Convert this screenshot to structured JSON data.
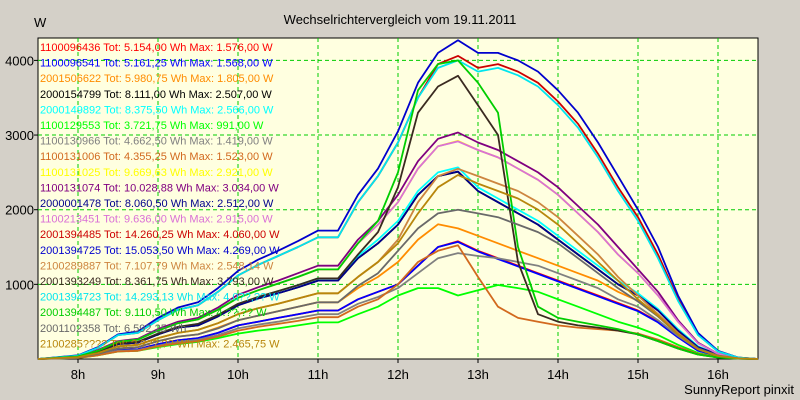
{
  "chart_data": {
    "type": "line",
    "title": "Wechselrichtervergleich vom 19.11.2011",
    "ylabel": "W",
    "xlabel": "",
    "footer": "SunnyReport pinxit",
    "x_ticks": [
      "8h",
      "9h",
      "10h",
      "11h",
      "12h",
      "13h",
      "14h",
      "15h",
      "16h"
    ],
    "y_ticks": [
      1000,
      2000,
      3000,
      4000
    ],
    "xlim": [
      7.5,
      16.5
    ],
    "ylim": [
      0,
      4300
    ],
    "grid": true,
    "legend_position": "top-left",
    "colors": {
      "plot_background": "#ffffe0",
      "window_background": "#d4d0c8",
      "grid": "#00cc00"
    },
    "x": [
      7.5,
      8.0,
      8.25,
      8.5,
      8.75,
      9.0,
      9.25,
      9.5,
      9.75,
      10.0,
      10.25,
      10.5,
      10.75,
      11.0,
      11.25,
      11.5,
      11.75,
      12.0,
      12.25,
      12.5,
      12.75,
      13.0,
      13.25,
      13.5,
      13.75,
      14.0,
      14.25,
      14.5,
      14.75,
      15.0,
      15.25,
      15.5,
      15.75,
      16.0,
      16.25,
      16.5
    ],
    "series": [
      {
        "name": "1100096436 Tot: 5.154,00 Wh Max: 1.576,00 W",
        "color": "#ff0000",
        "values": [
          0,
          20,
          60,
          120,
          130,
          200,
          250,
          280,
          350,
          450,
          500,
          550,
          600,
          650,
          650,
          800,
          900,
          1000,
          1250,
          1500,
          1576,
          1450,
          1350,
          1250,
          1150,
          1050,
          950,
          850,
          750,
          650,
          500,
          300,
          120,
          40,
          10,
          0
        ]
      },
      {
        "name": "1100096541 Tot: 5.161,25 Wh Max: 1.568,00 W",
        "color": "#0000ff",
        "values": [
          0,
          20,
          60,
          120,
          130,
          200,
          250,
          280,
          350,
          450,
          500,
          550,
          600,
          650,
          650,
          800,
          900,
          1000,
          1250,
          1500,
          1568,
          1440,
          1340,
          1240,
          1140,
          1040,
          940,
          840,
          740,
          640,
          490,
          290,
          110,
          40,
          10,
          0
        ]
      },
      {
        "name": "2001506622 Tot: 5.980,75 Wh Max: 1.805,00 W",
        "color": "#ff8c00",
        "values": [
          0,
          25,
          70,
          140,
          160,
          240,
          300,
          330,
          420,
          520,
          580,
          640,
          700,
          760,
          760,
          950,
          1100,
          1300,
          1600,
          1805,
          1750,
          1650,
          1550,
          1450,
          1350,
          1250,
          1150,
          1050,
          900,
          780,
          600,
          350,
          140,
          50,
          10,
          0
        ]
      },
      {
        "name": "2000154799 Tot: 8.111,00 Wh Max: 2.507,00 W",
        "color": "#000000",
        "values": [
          0,
          30,
          100,
          200,
          220,
          330,
          420,
          450,
          570,
          720,
          810,
          880,
          960,
          1050,
          1050,
          1350,
          1550,
          1800,
          2200,
          2450,
          2507,
          2250,
          2100,
          1950,
          1800,
          1600,
          1400,
          1200,
          1000,
          850,
          650,
          380,
          160,
          60,
          15,
          0
        ]
      },
      {
        "name": "2000149892 Tot: 8.375,50 Wh Max: 2.566,00 W",
        "color": "#00ffff",
        "values": [
          0,
          30,
          100,
          200,
          230,
          340,
          430,
          470,
          590,
          740,
          830,
          910,
          990,
          1080,
          1080,
          1380,
          1600,
          1850,
          2250,
          2500,
          2566,
          2300,
          2150,
          2000,
          1850,
          1650,
          1450,
          1250,
          1050,
          880,
          670,
          400,
          170,
          60,
          15,
          0
        ]
      },
      {
        "name": "1100129553 Tot: 3.721,75 Wh Max: 991,00 W",
        "color": "#00ff00",
        "values": [
          0,
          15,
          50,
          100,
          110,
          160,
          200,
          230,
          280,
          340,
          380,
          410,
          450,
          490,
          490,
          600,
          700,
          850,
          950,
          950,
          850,
          920,
          991,
          950,
          900,
          800,
          700,
          600,
          500,
          420,
          320,
          190,
          80,
          25,
          5,
          0
        ]
      },
      {
        "name": "1100130966 Tot: 4.662,50 Wh Max: 1.419,00 W",
        "color": "#808080",
        "values": [
          0,
          18,
          55,
          110,
          120,
          180,
          230,
          260,
          320,
          410,
          460,
          500,
          550,
          600,
          600,
          740,
          830,
          950,
          1150,
          1350,
          1419,
          1380,
          1350,
          1300,
          1250,
          1150,
          1050,
          950,
          800,
          700,
          520,
          310,
          130,
          40,
          10,
          0
        ]
      },
      {
        "name": "1100131006 Tot: 4.355,25 Wh Max: 1.523,00 W",
        "color": "#d2691e",
        "values": [
          0,
          15,
          50,
          100,
          110,
          170,
          210,
          240,
          300,
          380,
          430,
          470,
          510,
          560,
          560,
          700,
          800,
          1000,
          1300,
          1450,
          1523,
          1100,
          700,
          550,
          500,
          450,
          420,
          400,
          380,
          340,
          260,
          160,
          70,
          25,
          5,
          0
        ]
      },
      {
        "name": "1100131025 Tot: 9.669,63 Wh Max: 2.921,00 W",
        "color": "#ffff00",
        "values": [
          0,
          35,
          110,
          230,
          260,
          380,
          480,
          530,
          660,
          820,
          920,
          1010,
          1100,
          1200,
          1200,
          1550,
          1800,
          2100,
          2550,
          2850,
          2921,
          2800,
          2700,
          2550,
          2400,
          2200,
          1950,
          1700,
          1400,
          1150,
          850,
          500,
          210,
          70,
          15,
          0
        ]
      },
      {
        "name": "1100131074 Tot: 10.028,88 Wh Max: 3.034,00 W",
        "color": "#800080",
        "values": [
          0,
          35,
          120,
          240,
          270,
          400,
          500,
          550,
          690,
          860,
          960,
          1050,
          1150,
          1250,
          1250,
          1600,
          1850,
          2200,
          2650,
          2950,
          3034,
          2900,
          2800,
          2650,
          2500,
          2300,
          2050,
          1800,
          1500,
          1200,
          900,
          520,
          220,
          70,
          15,
          0
        ]
      },
      {
        "name": "2000001478 Tot: 8.060,50 Wh Max: 2.512,00 W",
        "color": "#00008b",
        "values": [
          0,
          30,
          100,
          200,
          220,
          330,
          420,
          450,
          570,
          720,
          810,
          880,
          960,
          1050,
          1050,
          1350,
          1550,
          1800,
          2200,
          2450,
          2512,
          2250,
          2100,
          1950,
          1800,
          1600,
          1400,
          1200,
          1000,
          850,
          650,
          380,
          160,
          60,
          15,
          0
        ]
      },
      {
        "name": "1100213451 Tot: 9.636,00 Wh Max: 2.915,00 W",
        "color": "#da70d6",
        "values": [
          0,
          35,
          110,
          230,
          260,
          380,
          480,
          530,
          660,
          820,
          920,
          1010,
          1100,
          1200,
          1200,
          1550,
          1800,
          2100,
          2550,
          2850,
          2915,
          2800,
          2700,
          2550,
          2400,
          2200,
          1950,
          1700,
          1400,
          1150,
          850,
          500,
          210,
          70,
          15,
          0
        ]
      },
      {
        "name": "2001394485 Tot: 14.260,25 Wh Max: 4.060,00 W",
        "color": "#cc0000",
        "values": [
          0,
          45,
          150,
          320,
          350,
          520,
          660,
          720,
          900,
          1120,
          1260,
          1380,
          1500,
          1630,
          1630,
          2100,
          2450,
          2900,
          3500,
          3950,
          4060,
          3900,
          3950,
          3850,
          3700,
          3450,
          3150,
          2750,
          2300,
          1900,
          1400,
          800,
          330,
          100,
          20,
          0
        ]
      },
      {
        "name": "2001394725 Tot: 15.053,50 Wh Max: 4.269,00 W",
        "color": "#0000cd",
        "values": [
          0,
          50,
          160,
          330,
          370,
          550,
          690,
          760,
          950,
          1180,
          1330,
          1450,
          1580,
          1720,
          1720,
          2200,
          2550,
          3050,
          3700,
          4100,
          4269,
          4100,
          4100,
          4000,
          3850,
          3600,
          3300,
          2900,
          2450,
          2000,
          1500,
          850,
          350,
          110,
          20,
          0
        ]
      },
      {
        "name": "2100289887 Tot: 7.107,79 Wh Max: 2.548,14 W",
        "color": "#cd853f",
        "values": [
          0,
          25,
          80,
          170,
          190,
          280,
          350,
          390,
          480,
          600,
          680,
          740,
          810,
          880,
          880,
          1100,
          1300,
          1600,
          2100,
          2450,
          2548,
          2450,
          2350,
          2250,
          2100,
          1900,
          1650,
          1400,
          1100,
          850,
          600,
          350,
          140,
          45,
          10,
          0
        ]
      },
      {
        "name": "2001393249 Tot: 8.361,75 Wh Max: 3.793,00 W",
        "color": "#3a2a20",
        "values": [
          0,
          30,
          100,
          210,
          230,
          340,
          430,
          470,
          590,
          740,
          830,
          910,
          990,
          1080,
          1080,
          1400,
          1700,
          2300,
          3300,
          3650,
          3793,
          3400,
          3000,
          1300,
          600,
          500,
          450,
          420,
          380,
          330,
          240,
          140,
          60,
          20,
          5,
          0
        ]
      },
      {
        "name": "2001394723 Tot: 14.293,13 Wh Max: 4.0??,?? W",
        "color": "#00e5ee",
        "values": [
          0,
          45,
          150,
          320,
          350,
          520,
          660,
          720,
          900,
          1120,
          1260,
          1380,
          1500,
          1630,
          1630,
          2100,
          2450,
          2900,
          3500,
          3900,
          4000,
          3850,
          3900,
          3800,
          3650,
          3400,
          3100,
          2700,
          2250,
          1850,
          1350,
          780,
          320,
          100,
          20,
          0
        ]
      },
      {
        "name": "2001394487 Tot: 9.110,50 Wh Max: 4.??,?? W",
        "color": "#00cd00",
        "values": [
          0,
          35,
          110,
          230,
          260,
          380,
          480,
          530,
          660,
          820,
          920,
          1010,
          1100,
          1200,
          1200,
          1550,
          1850,
          2500,
          3600,
          3950,
          4000,
          3700,
          3300,
          1500,
          700,
          550,
          500,
          450,
          400,
          330,
          240,
          140,
          60,
          20,
          5,
          0
        ]
      },
      {
        "name": "2001102358 Tot: 6.592,25 Wh",
        "color": "#696969",
        "values": [
          0,
          20,
          70,
          140,
          160,
          240,
          300,
          330,
          410,
          520,
          580,
          640,
          700,
          760,
          760,
          980,
          1150,
          1450,
          1750,
          1950,
          2000,
          1950,
          1900,
          1800,
          1700,
          1550,
          1350,
          1150,
          950,
          770,
          570,
          330,
          140,
          45,
          10,
          0
        ]
      },
      {
        "name": "2100285???? Tot: ?.???,?? Wh Max: 2.465,75 W",
        "color": "#b8860b",
        "values": [
          0,
          25,
          80,
          170,
          190,
          280,
          350,
          390,
          480,
          600,
          680,
          740,
          810,
          880,
          880,
          1100,
          1300,
          1550,
          1950,
          2300,
          2465,
          2350,
          2250,
          2150,
          2000,
          1800,
          1550,
          1300,
          1050,
          800,
          580,
          330,
          130,
          40,
          10,
          0
        ]
      }
    ]
  }
}
